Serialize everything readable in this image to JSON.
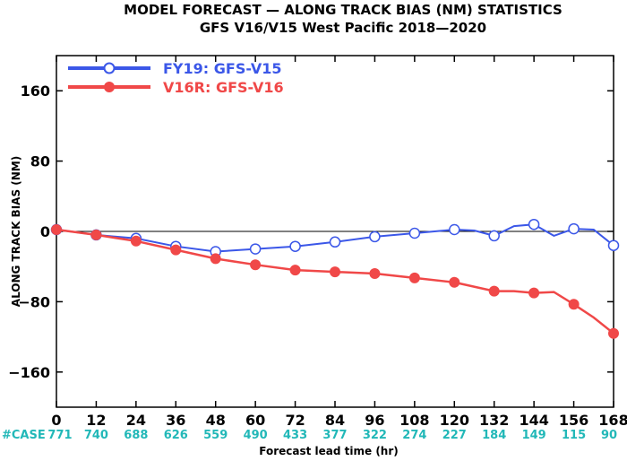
{
  "colors": {
    "v15": "#3b57e8",
    "v16": "#f04848",
    "cases": "#22b8b8",
    "zero": "#000000"
  },
  "chart_data": {
    "type": "line",
    "title": "MODEL FORECAST — ALONG TRACK BIAS (NM) STATISTICS",
    "subtitle": "GFS V16/V15 West Pacific 2018—2020",
    "xlabel": "Forecast lead time (hr)",
    "ylabel": "ALONG TRACK BIAS (NM)",
    "xlim": [
      0,
      168
    ],
    "ylim": [
      -200,
      200
    ],
    "x_ticks": [
      "0",
      "12",
      "24",
      "36",
      "48",
      "60",
      "72",
      "84",
      "96",
      "108",
      "120",
      "132",
      "144",
      "156",
      "168"
    ],
    "y_ticks": [
      "160",
      "80",
      "0",
      "−80",
      "−160"
    ],
    "grid": false,
    "legend_position": "top-left",
    "case_label": "#CASE",
    "case_counts": [
      "771",
      "740",
      "688",
      "626",
      "559",
      "490",
      "433",
      "377",
      "322",
      "274",
      "227",
      "184",
      "149",
      "115",
      "90"
    ],
    "series": [
      {
        "name": "FY19: GFS-V15",
        "color": "#3b57e8",
        "x": [
          0,
          12,
          24,
          36,
          48,
          60,
          72,
          84,
          96,
          108,
          120,
          126,
          132,
          138,
          144,
          150,
          156,
          162,
          168
        ],
        "y": [
          2,
          -4,
          -8,
          -17,
          -23,
          -20,
          -17,
          -12,
          -6,
          -2,
          2,
          1,
          -5,
          6,
          8,
          -5,
          3,
          2,
          -16
        ],
        "marker_x": [
          0,
          12,
          24,
          36,
          48,
          60,
          72,
          84,
          96,
          108,
          120,
          132,
          144,
          156,
          168
        ]
      },
      {
        "name": "V16R: GFS-V16",
        "color": "#f04848",
        "x": [
          0,
          12,
          24,
          36,
          48,
          60,
          72,
          84,
          96,
          108,
          120,
          132,
          138,
          144,
          150,
          156,
          162,
          168
        ],
        "y": [
          2,
          -4,
          -11,
          -21,
          -31,
          -38,
          -44,
          -46,
          -48,
          -53,
          -58,
          -68,
          -68,
          -70,
          -69,
          -83,
          -98,
          -116
        ],
        "marker_x": [
          0,
          12,
          24,
          36,
          48,
          60,
          72,
          84,
          96,
          108,
          120,
          132,
          144,
          156,
          168
        ]
      }
    ]
  }
}
